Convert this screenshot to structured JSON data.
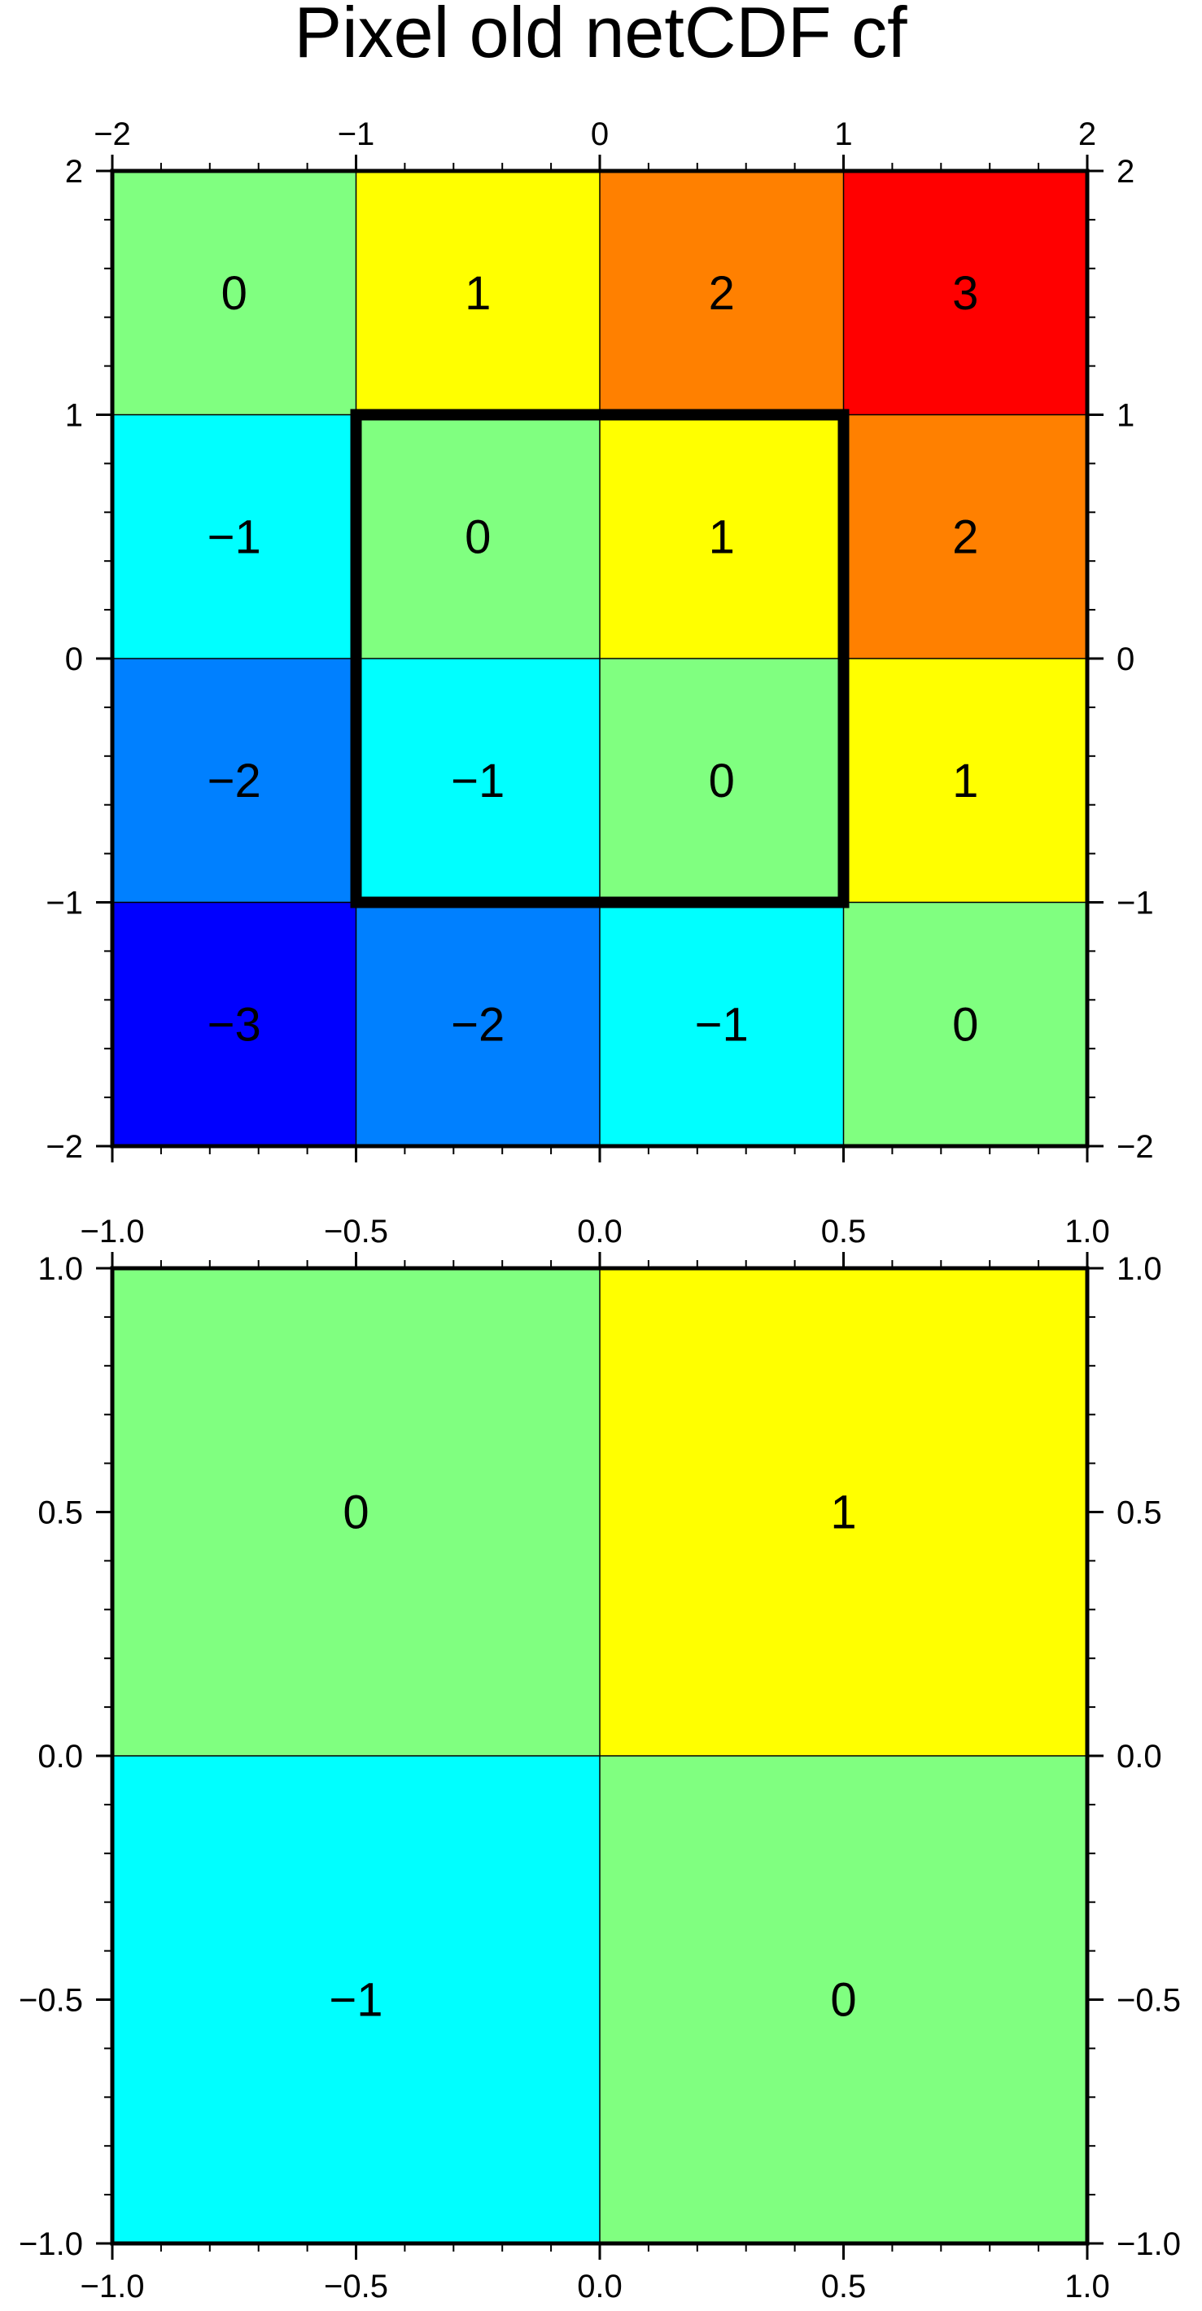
{
  "title": "Pixel old netCDF cf",
  "palette": {
    "-3": "#0000ff",
    "-2": "#0080ff",
    "-1": "#00ffff",
    "0": "#80ff80",
    "1": "#ffff00",
    "2": "#ff8000",
    "3": "#ff0000"
  },
  "chart_data": [
    {
      "type": "heatmap",
      "xlim": [
        -2,
        2
      ],
      "ylim": [
        -2,
        2
      ],
      "x_edges": [
        -2,
        -1,
        0,
        1,
        2
      ],
      "y_edges": [
        -2,
        -1,
        0,
        1,
        2
      ],
      "x_ticks": [
        -2,
        -1,
        0,
        1,
        2
      ],
      "y_ticks": [
        -2,
        -1,
        0,
        1,
        2
      ],
      "x_tick_labels": [
        "−2",
        "−1",
        "0",
        "1",
        "2"
      ],
      "y_tick_labels": [
        "−2",
        "−1",
        "0",
        "1",
        "2"
      ],
      "minor_step": 0.2,
      "grid_lines": {
        "x": [
          0
        ],
        "y": [
          0
        ]
      },
      "rows_top_to_bottom": [
        [
          0,
          1,
          2,
          3
        ],
        [
          -1,
          0,
          1,
          2
        ],
        [
          -2,
          -1,
          0,
          1
        ],
        [
          -3,
          -2,
          -1,
          0
        ]
      ],
      "highlight_box": {
        "x": [
          -1,
          1
        ],
        "y": [
          -1,
          1
        ]
      },
      "x_axis_labels_position": "top",
      "y_axis_labels_position": "left and right"
    },
    {
      "type": "heatmap",
      "xlim": [
        -1,
        1
      ],
      "ylim": [
        -1,
        1
      ],
      "x_edges": [
        -1,
        0,
        1
      ],
      "y_edges": [
        -1,
        0,
        1
      ],
      "x_ticks": [
        -1,
        -0.5,
        0,
        0.5,
        1
      ],
      "y_ticks": [
        -1,
        -0.5,
        0,
        0.5,
        1
      ],
      "x_tick_labels": [
        "−1.0",
        "−0.5",
        "0.0",
        "0.5",
        "1.0"
      ],
      "y_tick_labels": [
        "−1.0",
        "−0.5",
        "0.0",
        "0.5",
        "1.0"
      ],
      "minor_step": 0.1,
      "grid_lines": {
        "x": [
          0
        ],
        "y": [
          0
        ]
      },
      "rows_top_to_bottom": [
        [
          0,
          1
        ],
        [
          -1,
          0
        ]
      ],
      "x_axis_labels_position": "top and bottom",
      "y_axis_labels_position": "left and right"
    }
  ]
}
